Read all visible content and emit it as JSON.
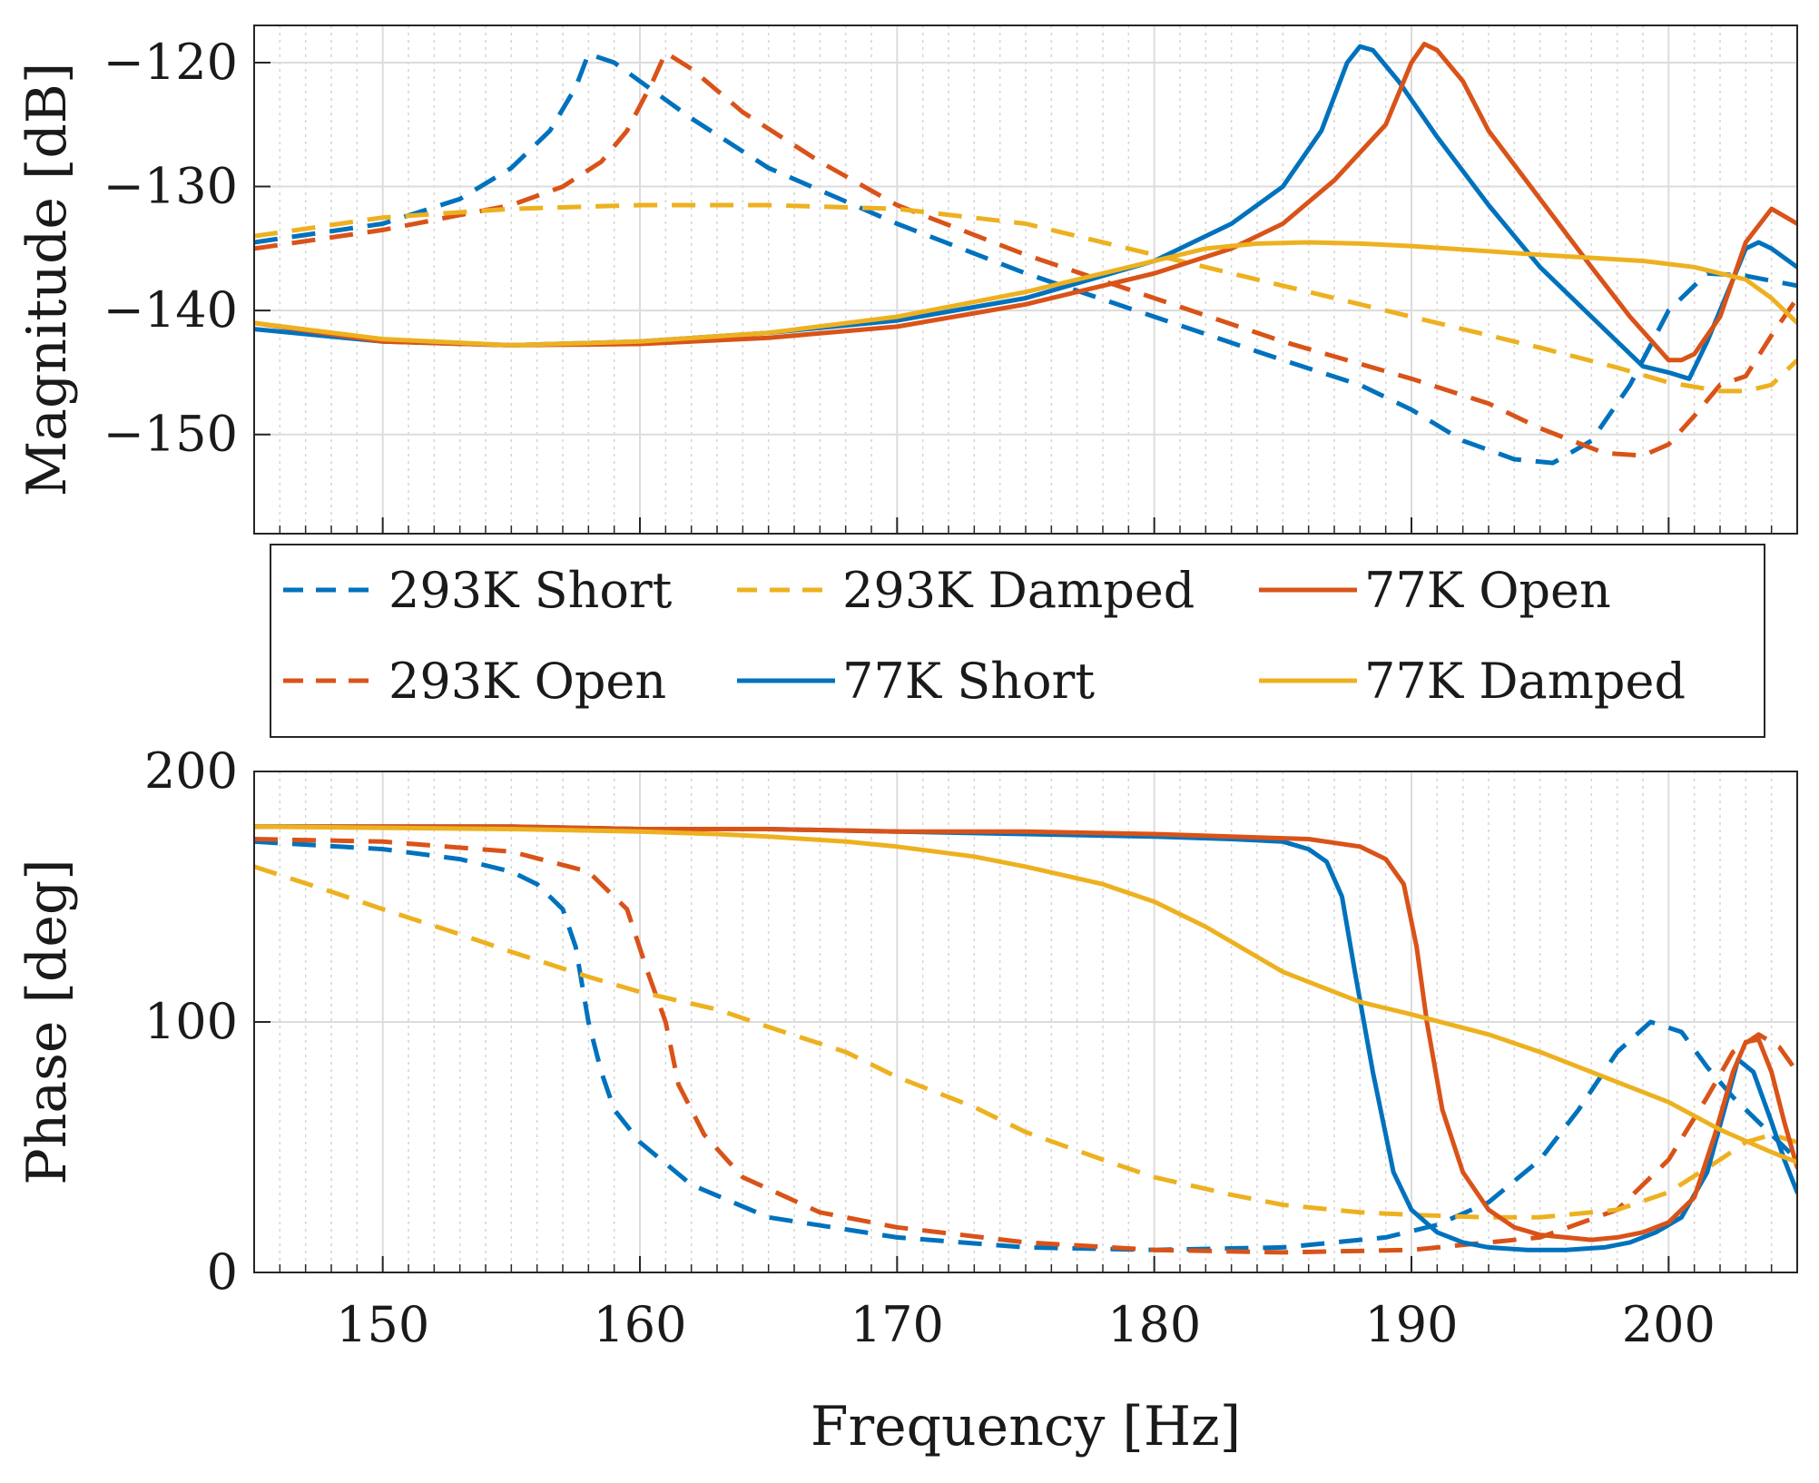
{
  "chart_data": [
    {
      "type": "line",
      "panel": "magnitude",
      "ylabel": "Magnitude [dB]",
      "xlim": [
        145,
        205
      ],
      "ylim": [
        -158,
        -117
      ],
      "yticks": [
        -120,
        -130,
        -140,
        -150
      ],
      "ytick_labels": [
        "−120",
        "−130",
        "−140",
        "−150"
      ],
      "grid": true,
      "series": [
        {
          "name": "293K Short",
          "color": "#0072BD",
          "style": "dashed",
          "x": [
            145,
            150,
            153,
            155,
            156.5,
            157.5,
            158,
            159,
            160,
            162,
            165,
            170,
            175,
            180,
            185,
            188,
            190,
            192,
            194,
            195.5,
            197,
            198.5,
            200,
            201.5,
            203,
            205
          ],
          "y": [
            -134.5,
            -133,
            -131,
            -128.5,
            -125.5,
            -122,
            -119.3,
            -120,
            -121.5,
            -124.5,
            -128.5,
            -133,
            -137,
            -140.5,
            -144,
            -146,
            -148,
            -150.5,
            -152,
            -152.3,
            -150.5,
            -146,
            -140,
            -137,
            -137.2,
            -138
          ]
        },
        {
          "name": "293K Open",
          "color": "#D95319",
          "style": "dashed",
          "x": [
            145,
            150,
            155,
            157,
            158.5,
            159.5,
            160.5,
            161,
            162,
            164,
            167,
            170,
            175,
            180,
            185,
            190,
            193,
            195,
            197.5,
            199,
            200,
            201,
            202,
            203,
            204,
            205
          ],
          "y": [
            -135,
            -133.5,
            -131.5,
            -130,
            -128,
            -125.5,
            -121.5,
            -119.2,
            -120.5,
            -124,
            -128,
            -131.5,
            -135.5,
            -139,
            -142.5,
            -145.5,
            -147.5,
            -149.5,
            -151.5,
            -151.7,
            -150.8,
            -148.5,
            -146,
            -145.3,
            -142,
            -139
          ]
        },
        {
          "name": "293K Damped",
          "color": "#EDB120",
          "style": "dashed",
          "x": [
            145,
            150,
            155,
            160,
            165,
            170,
            175,
            180,
            185,
            190,
            195,
            198,
            200,
            202,
            203,
            204,
            205
          ],
          "y": [
            -134,
            -132.5,
            -131.8,
            -131.5,
            -131.5,
            -131.8,
            -133,
            -135.5,
            -138,
            -140.5,
            -143,
            -144.6,
            -145.8,
            -146.5,
            -146.5,
            -146,
            -144
          ]
        },
        {
          "name": "77K Short",
          "color": "#0072BD",
          "style": "solid",
          "x": [
            145,
            150,
            155,
            160,
            165,
            170,
            175,
            180,
            183,
            185,
            186.5,
            187.5,
            188,
            188.5,
            189.5,
            191,
            193,
            195,
            197,
            199,
            200,
            200.8,
            201.5,
            202.5,
            203,
            203.5,
            204,
            205
          ],
          "y": [
            -141.5,
            -142.5,
            -142.8,
            -142.5,
            -141.8,
            -140.8,
            -139,
            -136,
            -133,
            -130,
            -125.5,
            -120,
            -118.7,
            -119,
            -121.5,
            -126,
            -131.5,
            -136.5,
            -140.5,
            -144.5,
            -145,
            -145.5,
            -142.5,
            -137.5,
            -135,
            -134.5,
            -135,
            -136.5
          ]
        },
        {
          "name": "77K Open",
          "color": "#D95319",
          "style": "solid",
          "x": [
            145,
            150,
            155,
            160,
            165,
            170,
            175,
            180,
            183,
            185,
            187,
            189,
            190,
            190.5,
            191,
            192,
            193,
            195,
            197,
            198.5,
            200,
            200.5,
            201,
            202,
            203,
            204,
            205
          ],
          "y": [
            -141,
            -142.5,
            -142.8,
            -142.7,
            -142.2,
            -141.3,
            -139.5,
            -137,
            -135,
            -133,
            -129.5,
            -125,
            -120,
            -118.5,
            -119,
            -121.5,
            -125.5,
            -131,
            -136.5,
            -140.5,
            -144,
            -144,
            -143.5,
            -140.5,
            -134.5,
            -131.8,
            -133
          ]
        },
        {
          "name": "77K Damped",
          "color": "#EDB120",
          "style": "solid",
          "x": [
            145,
            150,
            155,
            160,
            165,
            170,
            175,
            180,
            182,
            184,
            186,
            188,
            190,
            195,
            199,
            201,
            202,
            203,
            204,
            205
          ],
          "y": [
            -141,
            -142.3,
            -142.8,
            -142.5,
            -141.8,
            -140.5,
            -138.5,
            -136,
            -135,
            -134.6,
            -134.5,
            -134.6,
            -134.8,
            -135.5,
            -136,
            -136.5,
            -137,
            -137.5,
            -139,
            -141
          ]
        }
      ]
    },
    {
      "type": "line",
      "panel": "phase",
      "ylabel": "Phase [deg]",
      "xlabel": "Frequency [Hz]",
      "xlim": [
        145,
        205
      ],
      "ylim": [
        0,
        200
      ],
      "xticks": [
        150,
        160,
        170,
        180,
        190,
        200
      ],
      "xtick_labels": [
        "150",
        "160",
        "170",
        "180",
        "190",
        "200"
      ],
      "yticks": [
        0,
        100,
        200
      ],
      "ytick_labels": [
        "0",
        "100",
        "200"
      ],
      "grid": true,
      "series": [
        {
          "name": "293K Short",
          "color": "#0072BD",
          "style": "dashed",
          "x": [
            145,
            150,
            153,
            155,
            156,
            157,
            157.5,
            158,
            158.5,
            159,
            160,
            162,
            165,
            170,
            175,
            180,
            185,
            189,
            191,
            193,
            195,
            196.5,
            198,
            199.3,
            200.5,
            201.5,
            202.5,
            203.5,
            204.5,
            205
          ],
          "y": [
            172,
            169,
            165,
            160,
            155,
            145,
            130,
            100,
            80,
            65,
            52,
            35,
            22,
            14,
            10,
            9,
            10,
            14,
            19,
            28,
            45,
            65,
            88,
            100,
            96,
            82,
            70,
            60,
            50,
            45
          ]
        },
        {
          "name": "293K Open",
          "color": "#D95319",
          "style": "dashed",
          "x": [
            145,
            150,
            155,
            158,
            159.5,
            160.3,
            161,
            161.5,
            162.5,
            164,
            167,
            170,
            175,
            180,
            185,
            190,
            195,
            198,
            200,
            201.5,
            202.5,
            203.5,
            204.3,
            205
          ],
          "y": [
            173,
            172,
            168,
            160,
            145,
            120,
            100,
            75,
            55,
            38,
            24,
            18,
            12,
            9,
            8,
            9,
            14,
            25,
            45,
            70,
            88,
            95,
            90,
            80
          ]
        },
        {
          "name": "293K Damped",
          "color": "#EDB120",
          "style": "dashed",
          "x": [
            145,
            148,
            150,
            153,
            155,
            158,
            160,
            163,
            165,
            168,
            170,
            173,
            175,
            178,
            180,
            183,
            185,
            188,
            190,
            193,
            195,
            198,
            200,
            202,
            203,
            204,
            205
          ],
          "y": [
            162,
            152,
            145,
            135,
            128,
            118,
            112,
            105,
            98,
            88,
            78,
            66,
            56,
            45,
            38,
            31,
            27,
            24,
            23,
            22,
            22,
            25,
            32,
            45,
            52,
            55,
            52
          ]
        },
        {
          "name": "77K Short",
          "color": "#0072BD",
          "style": "solid",
          "x": [
            145,
            150,
            155,
            160,
            165,
            170,
            175,
            180,
            183,
            185,
            186,
            186.7,
            187.3,
            187.8,
            188.5,
            189.3,
            190,
            191,
            192,
            193,
            194.5,
            196,
            197.5,
            198.5,
            199.5,
            200.5,
            201.5,
            202.3,
            202.7,
            203.3,
            204,
            204.5,
            205
          ],
          "y": [
            178,
            178,
            178,
            177,
            177,
            176,
            175,
            174,
            173,
            172,
            169,
            164,
            150,
            120,
            80,
            40,
            25,
            16,
            12,
            10,
            9,
            9,
            10,
            12,
            16,
            22,
            40,
            70,
            85,
            80,
            60,
            45,
            32
          ]
        },
        {
          "name": "77K Open",
          "color": "#D95319",
          "style": "solid",
          "x": [
            145,
            150,
            155,
            160,
            165,
            170,
            175,
            180,
            183,
            186,
            188,
            189,
            189.7,
            190.2,
            190.6,
            191.2,
            192,
            193,
            194,
            195,
            196,
            197,
            198,
            199,
            200,
            201,
            201.8,
            202.5,
            203,
            203.5,
            204,
            204.5,
            205
          ],
          "y": [
            178,
            178,
            178,
            177,
            177,
            176,
            176,
            175,
            174,
            173,
            170,
            165,
            155,
            130,
            100,
            65,
            40,
            25,
            18,
            15,
            14,
            13,
            14,
            16,
            20,
            30,
            55,
            80,
            92,
            93,
            80,
            60,
            42
          ]
        },
        {
          "name": "77K Damped",
          "color": "#EDB120",
          "style": "solid",
          "x": [
            145,
            150,
            155,
            160,
            163,
            165,
            168,
            170,
            173,
            175,
            178,
            180,
            182,
            185,
            188,
            190,
            193,
            195,
            197,
            200,
            202,
            204,
            205
          ],
          "y": [
            178,
            177.5,
            177,
            176,
            175,
            174,
            172,
            170,
            166,
            162,
            155,
            148,
            138,
            120,
            108,
            103,
            95,
            88,
            80,
            68,
            57,
            48,
            44
          ]
        }
      ]
    }
  ],
  "legend": {
    "entries": [
      {
        "label": "293K Short",
        "color": "#0072BD",
        "style": "dashed"
      },
      {
        "label": "293K Damped",
        "color": "#EDB120",
        "style": "dashed"
      },
      {
        "label": "77K Open",
        "color": "#D95319",
        "style": "solid"
      },
      {
        "label": "293K Open",
        "color": "#D95319",
        "style": "dashed"
      },
      {
        "label": "77K Short",
        "color": "#0072BD",
        "style": "solid"
      },
      {
        "label": "77K Damped",
        "color": "#EDB120",
        "style": "solid"
      }
    ],
    "placement": "between-panels"
  }
}
